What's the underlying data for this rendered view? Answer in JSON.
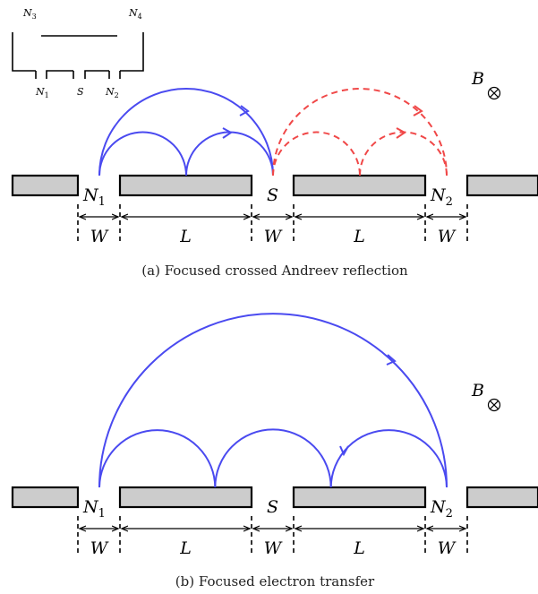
{
  "inset": {
    "labels": [
      "N3",
      "N4",
      "N1",
      "S",
      "N2"
    ]
  },
  "panel_a": {
    "caption": "(a) Focused crossed Andreev reflection",
    "field": "B",
    "contacts": {
      "n1": "N",
      "n1_sub": "1",
      "s": "S",
      "n2": "N",
      "n2_sub": "2"
    },
    "widths": [
      "W",
      "L",
      "W",
      "L",
      "W"
    ]
  },
  "panel_b": {
    "caption": "(b) Focused electron transfer",
    "field": "B",
    "contacts": {
      "n1": "N",
      "n1_sub": "1",
      "s": "S",
      "n2": "N",
      "n2_sub": "2"
    },
    "widths": [
      "W",
      "L",
      "W",
      "L",
      "W"
    ]
  },
  "colors": {
    "electron_path": "#4a4af0",
    "hole_path": "#f04848",
    "plate": "#cccccc"
  }
}
